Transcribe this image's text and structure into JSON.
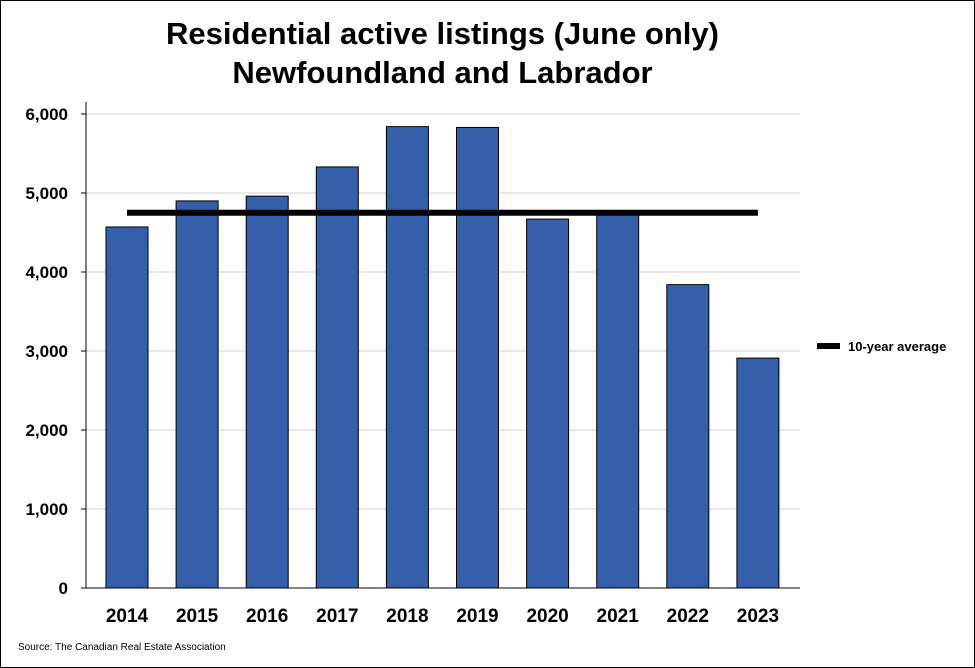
{
  "chart_data": {
    "type": "bar",
    "title": "Residential active listings (June only)",
    "subtitle": "Newfoundland and Labrador",
    "categories": [
      "2014",
      "2015",
      "2016",
      "2017",
      "2018",
      "2019",
      "2020",
      "2021",
      "2022",
      "2023"
    ],
    "series": [
      {
        "values": [
          4570,
          4900,
          4960,
          5330,
          5840,
          5830,
          4670,
          4730,
          3840,
          2910
        ],
        "color": "#355fa9"
      }
    ],
    "reference_line": {
      "name": "10-year average",
      "value": 4750,
      "color": "#000000"
    },
    "ylim": [
      0,
      6000
    ],
    "yticks": [
      0,
      1000,
      2000,
      3000,
      4000,
      5000,
      6000
    ],
    "ytick_labels": [
      "0",
      "1,000",
      "2,000",
      "3,000",
      "4,000",
      "5,000",
      "6,000"
    ],
    "grid": true,
    "legend": {
      "placement": "right",
      "entries": [
        "10-year average"
      ]
    },
    "xlabel": "",
    "ylabel": ""
  },
  "source": "Source: The Canadian Real Estate Association"
}
